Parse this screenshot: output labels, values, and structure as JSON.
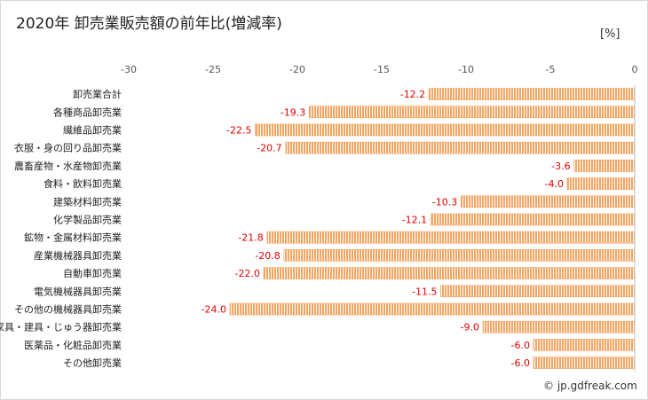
{
  "chart_data": {
    "type": "bar",
    "orientation": "horizontal",
    "title": "2020年 卸売業販売額の前年比(増減率)",
    "unit": "[%]",
    "xlabel": "",
    "ylabel": "",
    "xlim": [
      -30,
      0
    ],
    "xticks": [
      "-30",
      "-25",
      "-20",
      "-15",
      "-10",
      "-5",
      "0"
    ],
    "grid": false,
    "bar_color": "#f4a460",
    "label_color": "#e00000",
    "categories": [
      "卸売業合計",
      "各種商品卸売業",
      "繊維品卸売業",
      "衣服・身の回り品卸売業",
      "農畜産物・水産物卸売業",
      "食料・飲料卸売業",
      "建築材料卸売業",
      "化学製品卸売業",
      "鉱物・金属材料卸売業",
      "産業機械器具卸売業",
      "自動車卸売業",
      "電気機械器具卸売業",
      "その他の機械器具卸売業",
      "家具・建具・じゅう器卸売業",
      "医薬品・化粧品卸売業",
      "その他卸売業"
    ],
    "values": [
      -12.2,
      -19.3,
      -22.5,
      -20.7,
      -3.6,
      -4.0,
      -10.3,
      -12.1,
      -21.8,
      -20.8,
      -22.0,
      -11.5,
      -24.0,
      -9.0,
      -6.0,
      -6.0
    ],
    "value_labels": [
      "-12.2",
      "-19.3",
      "-22.5",
      "-20.7",
      "-3.6",
      "-4.0",
      "-10.3",
      "-12.1",
      "-21.8",
      "-20.8",
      "-22.0",
      "-11.5",
      "-24.0",
      "-9.0",
      "-6.0",
      "-6.0"
    ]
  },
  "credit": "© jp.gdfreak.com"
}
